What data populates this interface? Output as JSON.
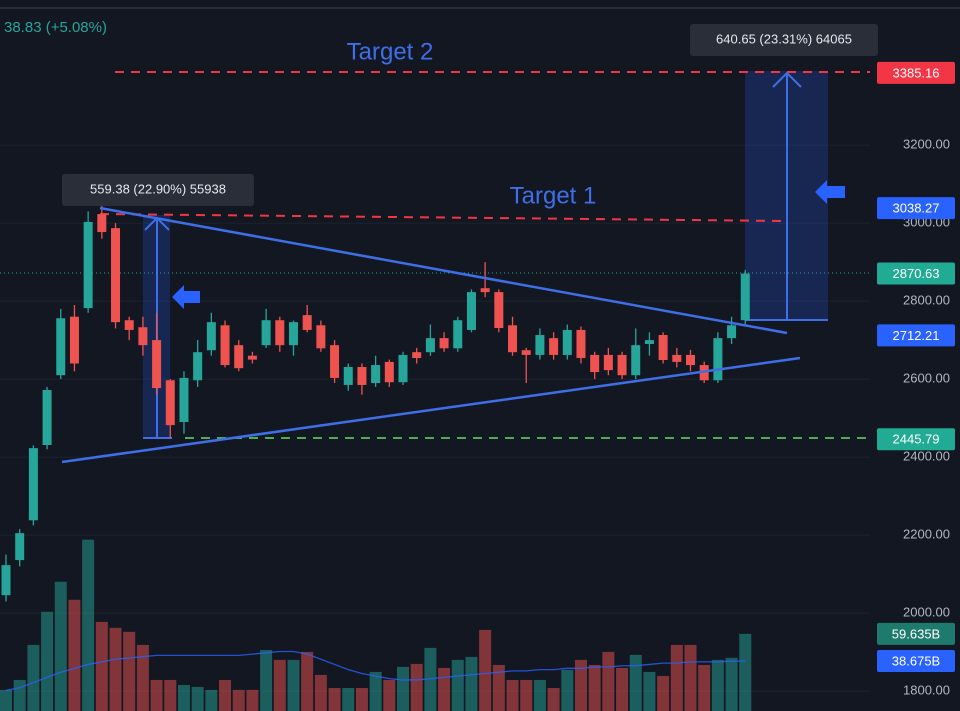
{
  "chart_data": {
    "type": "candlestick",
    "header": "38.83 (+5.08%)",
    "annotations": [
      "Target 2",
      "Target 1",
      "640.65 (23.31%) 64065",
      "559.38 (22.90%) 55938"
    ],
    "ylim": [
      1749,
      3572
    ],
    "yticks": [
      {
        "value": 1800,
        "label": "1800.00"
      },
      {
        "value": 2000,
        "label": "2000.00"
      },
      {
        "value": 2200,
        "label": "2200.00"
      },
      {
        "value": 2400,
        "label": "2400.00"
      },
      {
        "value": 2600,
        "label": "2600.00"
      },
      {
        "value": 2800,
        "label": "2800.00"
      },
      {
        "value": 3000,
        "label": "3000.00"
      },
      {
        "value": 3200,
        "label": "3200.00"
      }
    ],
    "grid": true,
    "up_color": "#26a69a",
    "down_color": "#ef5350",
    "open": [
      2046,
      2136,
      2238,
      2431,
      2610,
      2760,
      2782,
      3023,
      2987,
      2751,
      2733,
      2700,
      2597,
      2490,
      2597,
      2674,
      2738,
      2687,
      2660,
      2687,
      2751,
      2687,
      2764,
      2738,
      2687,
      2585,
      2631,
      2590,
      2644,
      2592,
      2669,
      2669,
      2705,
      2679,
      2726,
      2833,
      2823,
      2738,
      2674,
      2662,
      2705,
      2662,
      2726,
      2662,
      2662,
      2662,
      2610,
      2690,
      2713,
      2662,
      2662,
      2636,
      2597,
      2705,
      2751
    ],
    "high": [
      2150,
      2215,
      2430,
      2580,
      2780,
      2790,
      3030,
      3050,
      3000,
      2760,
      2760,
      2770,
      2600,
      2620,
      2700,
      2770,
      2750,
      2700,
      2670,
      2780,
      2760,
      2750,
      2790,
      2750,
      2700,
      2640,
      2640,
      2660,
      2650,
      2670,
      2680,
      2740,
      2720,
      2760,
      2830,
      2900,
      2830,
      2760,
      2680,
      2730,
      2720,
      2740,
      2735,
      2670,
      2680,
      2670,
      2730,
      2720,
      2720,
      2680,
      2675,
      2645,
      2720,
      2760,
      2880
    ],
    "low": [
      2030,
      2120,
      2225,
      2420,
      2600,
      2620,
      2770,
      2960,
      2730,
      2700,
      2660,
      2560,
      2450,
      2460,
      2580,
      2660,
      2630,
      2620,
      2640,
      2680,
      2670,
      2660,
      2720,
      2670,
      2590,
      2570,
      2560,
      2580,
      2580,
      2585,
      2640,
      2660,
      2670,
      2670,
      2720,
      2810,
      2720,
      2660,
      2590,
      2650,
      2650,
      2650,
      2640,
      2600,
      2610,
      2600,
      2600,
      2660,
      2640,
      2630,
      2620,
      2590,
      2590,
      2690,
      2740
    ],
    "close": [
      2123,
      2205,
      2423,
      2572,
      2756,
      2640,
      3003,
      2977,
      2746,
      2726,
      2687,
      2577,
      2482,
      2603,
      2669,
      2746,
      2636,
      2628,
      2650,
      2751,
      2687,
      2746,
      2726,
      2679,
      2603,
      2631,
      2585,
      2636,
      2592,
      2662,
      2654,
      2705,
      2679,
      2751,
      2823,
      2823,
      2731,
      2669,
      2662,
      2713,
      2662,
      2726,
      2654,
      2618,
      2623,
      2610,
      2687,
      2700,
      2649,
      2644,
      2636,
      2597,
      2705,
      2738,
      2870.63
    ],
    "volume": {
      "vlim": [
        0,
        150
      ],
      "values": [
        16.3,
        24.0,
        51.1,
        76.7,
        99.9,
        86.0,
        132.5,
        68.9,
        64.3,
        61.2,
        51.1,
        24.0,
        24.0,
        20.1,
        18.6,
        16.3,
        24.0,
        16.3,
        16.3,
        47.2,
        39.5,
        39.5,
        45.7,
        27.9,
        17.8,
        17.8,
        17.8,
        30.2,
        24.0,
        34.1,
        36.4,
        48.8,
        33.3,
        39.5,
        41.8,
        62.7,
        35.6,
        24.0,
        24.0,
        24.0,
        17.8,
        31.8,
        39.5,
        35.6,
        45.7,
        33.3,
        43.4,
        30.2,
        27.1,
        51.1,
        51.1,
        35.6,
        39.5,
        41.1,
        59.635
      ],
      "value_label": "59.635B",
      "ma": [
        16,
        18,
        22,
        26,
        30,
        33,
        36,
        38,
        40,
        41,
        42,
        43,
        43,
        43,
        43,
        43,
        43,
        43,
        44,
        45,
        46,
        46,
        44,
        40,
        36,
        32,
        29,
        27,
        25,
        24,
        24,
        25,
        26,
        27,
        28,
        29,
        30,
        31,
        31,
        32,
        32,
        33,
        33,
        34,
        34,
        35,
        35,
        36,
        37,
        37,
        38,
        38,
        38,
        38.5,
        38.675
      ],
      "ma_label": "38.675B",
      "ma_color": "#2962ff"
    },
    "price_labels": [
      {
        "value": 3385.16,
        "color": "#f23645"
      },
      {
        "value": 3038.27,
        "color": "#2962ff"
      },
      {
        "value": 2870.63,
        "color": "#22ab94"
      },
      {
        "value": 2712.21,
        "color": "#2962ff"
      },
      {
        "value": 2445.79,
        "color": "#22ab94"
      }
    ]
  }
}
